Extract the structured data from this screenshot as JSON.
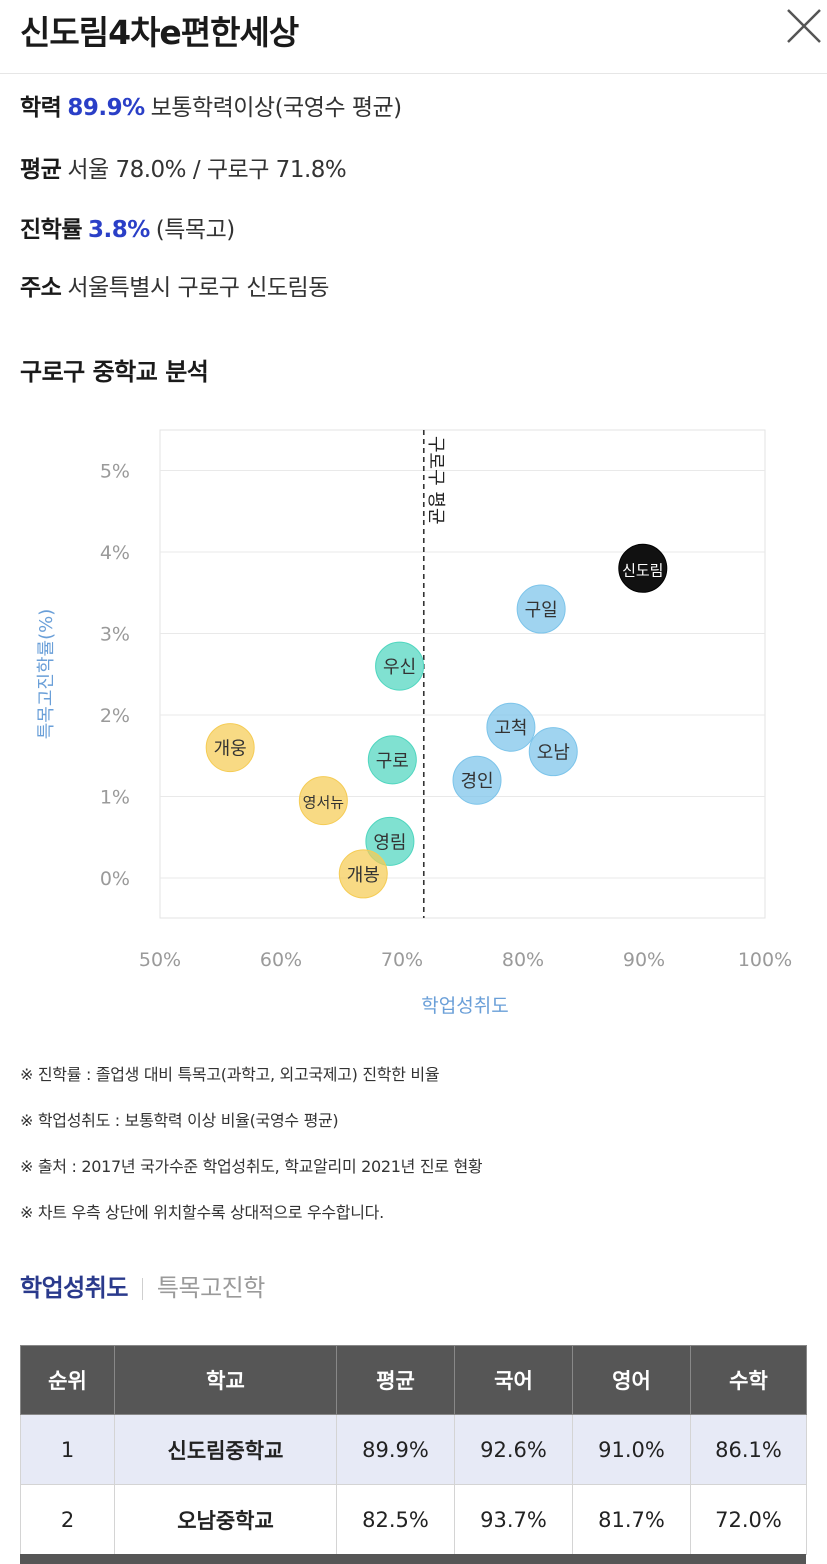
{
  "header": {
    "title": "신도림4차e편한세상",
    "close_icon": "close-icon"
  },
  "info": {
    "row1": {
      "label": "학력",
      "value": "89.9%",
      "suffix": "보통학력이상(국영수 평균)"
    },
    "row2": {
      "label": "평균",
      "text": "서울 78.0% / 구로구 71.8%"
    },
    "row3": {
      "label": "진학률",
      "value": "3.8%",
      "suffix": "(특목고)"
    },
    "row4": {
      "label": "주소",
      "text": "서울특별시 구로구 신도림동"
    }
  },
  "section_title": "구로구 중학교 분석",
  "colors": {
    "accent": "#2a3fc7",
    "tab_active": "#2a3a8c",
    "table_header": "#565656",
    "highlight_row": "#e7eaf6",
    "axis_label": "#6a9fd8"
  },
  "chart_data": {
    "type": "scatter",
    "xlabel": "학업성취도",
    "ylabel": "특목고진학률(%)",
    "xlim": [
      50,
      100
    ],
    "ylim": [
      -0.5,
      5.2
    ],
    "x_ticks": [
      "50%",
      "60%",
      "70%",
      "80%",
      "90%",
      "100%"
    ],
    "y_ticks": [
      "0%",
      "1%",
      "2%",
      "3%",
      "4%",
      "5%"
    ],
    "reference_line": {
      "x": 71.8,
      "label": "구로구 평균"
    },
    "points": [
      {
        "label": "신도림",
        "x": 89.9,
        "y": 3.8,
        "color": "#111111"
      },
      {
        "label": "구일",
        "x": 81.5,
        "y": 3.3,
        "color": "#7cc4ea"
      },
      {
        "label": "고척",
        "x": 79.0,
        "y": 1.85,
        "color": "#7cc4ea"
      },
      {
        "label": "오남",
        "x": 82.5,
        "y": 1.55,
        "color": "#7cc4ea"
      },
      {
        "label": "경인",
        "x": 76.2,
        "y": 1.2,
        "color": "#7cc4ea"
      },
      {
        "label": "우신",
        "x": 69.8,
        "y": 2.6,
        "color": "#4fd6bf"
      },
      {
        "label": "구로",
        "x": 69.2,
        "y": 1.45,
        "color": "#4fd6bf"
      },
      {
        "label": "영림",
        "x": 69.0,
        "y": 0.45,
        "color": "#4fd6bf"
      },
      {
        "label": "개웅",
        "x": 55.8,
        "y": 1.6,
        "color": "#f5cc55"
      },
      {
        "label": "영서뉴",
        "x": 63.5,
        "y": 0.95,
        "color": "#f5cc55"
      },
      {
        "label": "개봉",
        "x": 66.8,
        "y": 0.05,
        "color": "#f5cc55"
      }
    ]
  },
  "notes": [
    "※ 진학률 : 졸업생 대비 특목고(과학고, 외고국제고) 진학한 비율",
    "※ 학업성취도 : 보통학력 이상 비율(국영수 평균)",
    "※ 출처 : 2017년 국가수준 학업성취도, 학교알리미 2021년 진로 현황",
    "※ 차트 우측 상단에 위치할수록 상대적으로 우수합니다."
  ],
  "tabs": [
    "학업성취도",
    "특목고진학"
  ],
  "table": {
    "headers": [
      "순위",
      "학교",
      "평균",
      "국어",
      "영어",
      "수학"
    ],
    "rows": [
      [
        "1",
        "신도림중학교",
        "89.9%",
        "92.6%",
        "91.0%",
        "86.1%"
      ],
      [
        "2",
        "오남중학교",
        "82.5%",
        "93.7%",
        "81.7%",
        "72.0%"
      ]
    ]
  }
}
